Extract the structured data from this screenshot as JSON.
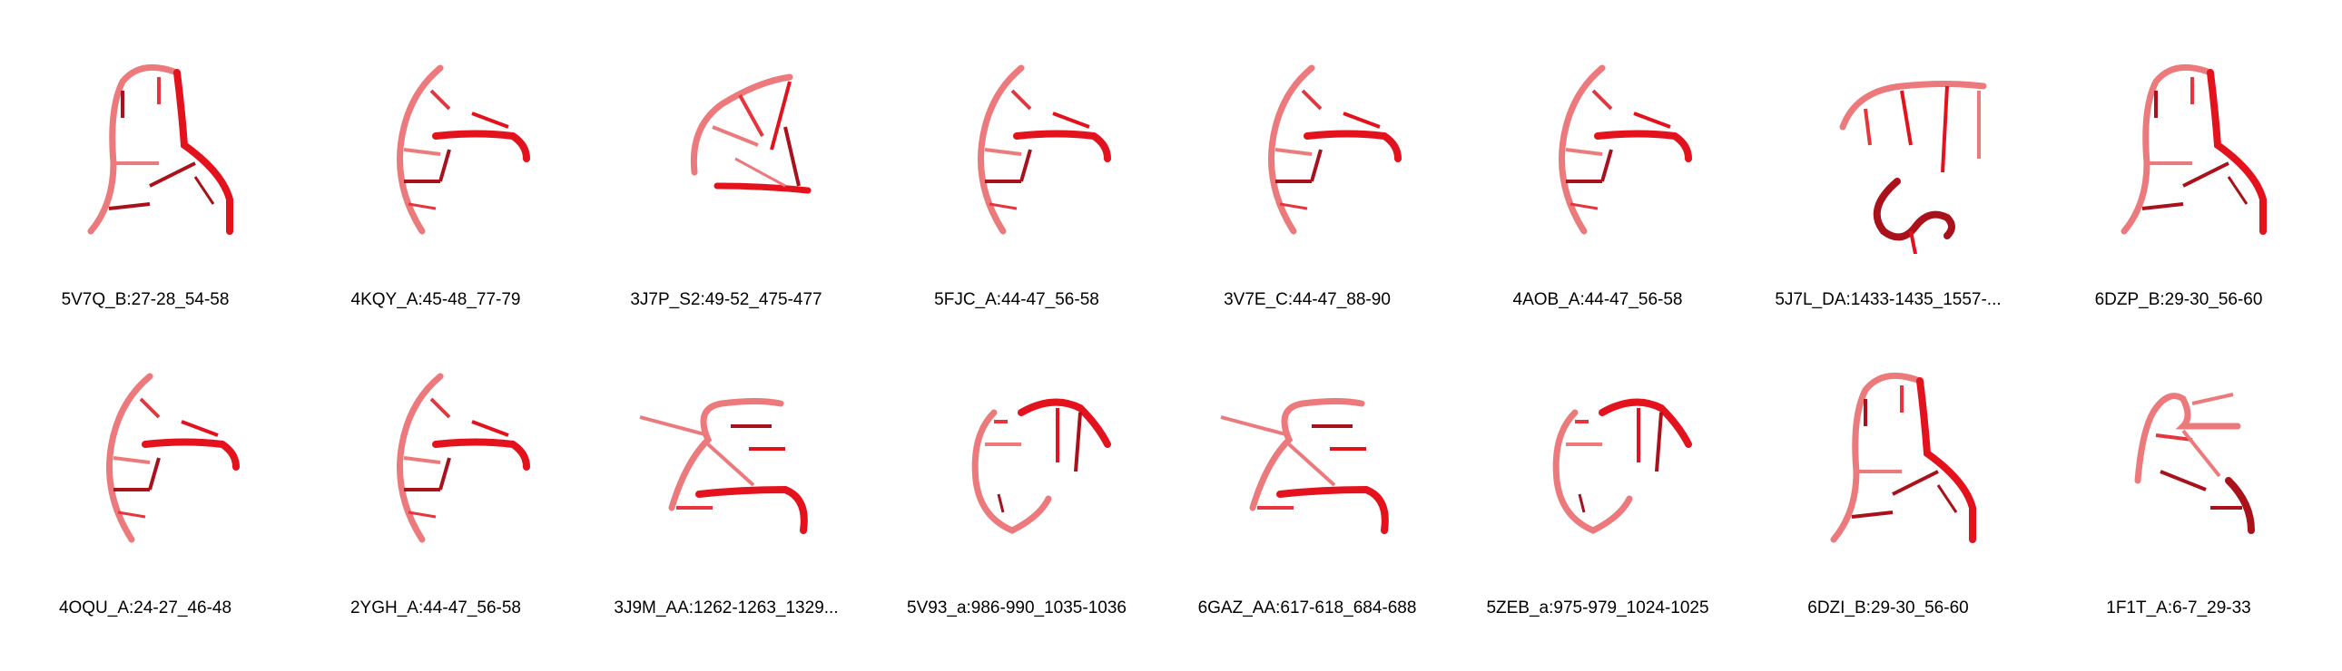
{
  "colors": {
    "light_strand": "#ec7a7c",
    "mid_strand": "#e8343c",
    "bright_strand": "#e3121c",
    "dark_strand": "#a9111b",
    "caption_text": "#000000",
    "background": "#ffffff"
  },
  "rows": [
    {
      "items": [
        {
          "caption": "5V7Q_B:27-28_54-58"
        },
        {
          "caption": "4KQY_A:45-48_77-79"
        },
        {
          "caption": "3J7P_S2:49-52_475-477"
        },
        {
          "caption": "5FJC_A:44-47_56-58"
        },
        {
          "caption": "3V7E_C:44-47_88-90"
        },
        {
          "caption": "4AOB_A:44-47_56-58"
        },
        {
          "caption": "5J7L_DA:1433-1435_1557-..."
        },
        {
          "caption": "6DZP_B:29-30_56-60"
        }
      ]
    },
    {
      "items": [
        {
          "caption": "4OQU_A:24-27_46-48"
        },
        {
          "caption": "2YGH_A:44-47_56-58"
        },
        {
          "caption": "3J9M_AA:1262-1263_1329..."
        },
        {
          "caption": "5V93_a:986-990_1035-1036"
        },
        {
          "caption": "6GAZ_AA:617-618_684-688"
        },
        {
          "caption": "5ZEB_a:975-979_1024-1025"
        },
        {
          "caption": "6DZI_B:29-30_56-60"
        },
        {
          "caption": "1F1T_A:6-7_29-33"
        }
      ]
    }
  ]
}
